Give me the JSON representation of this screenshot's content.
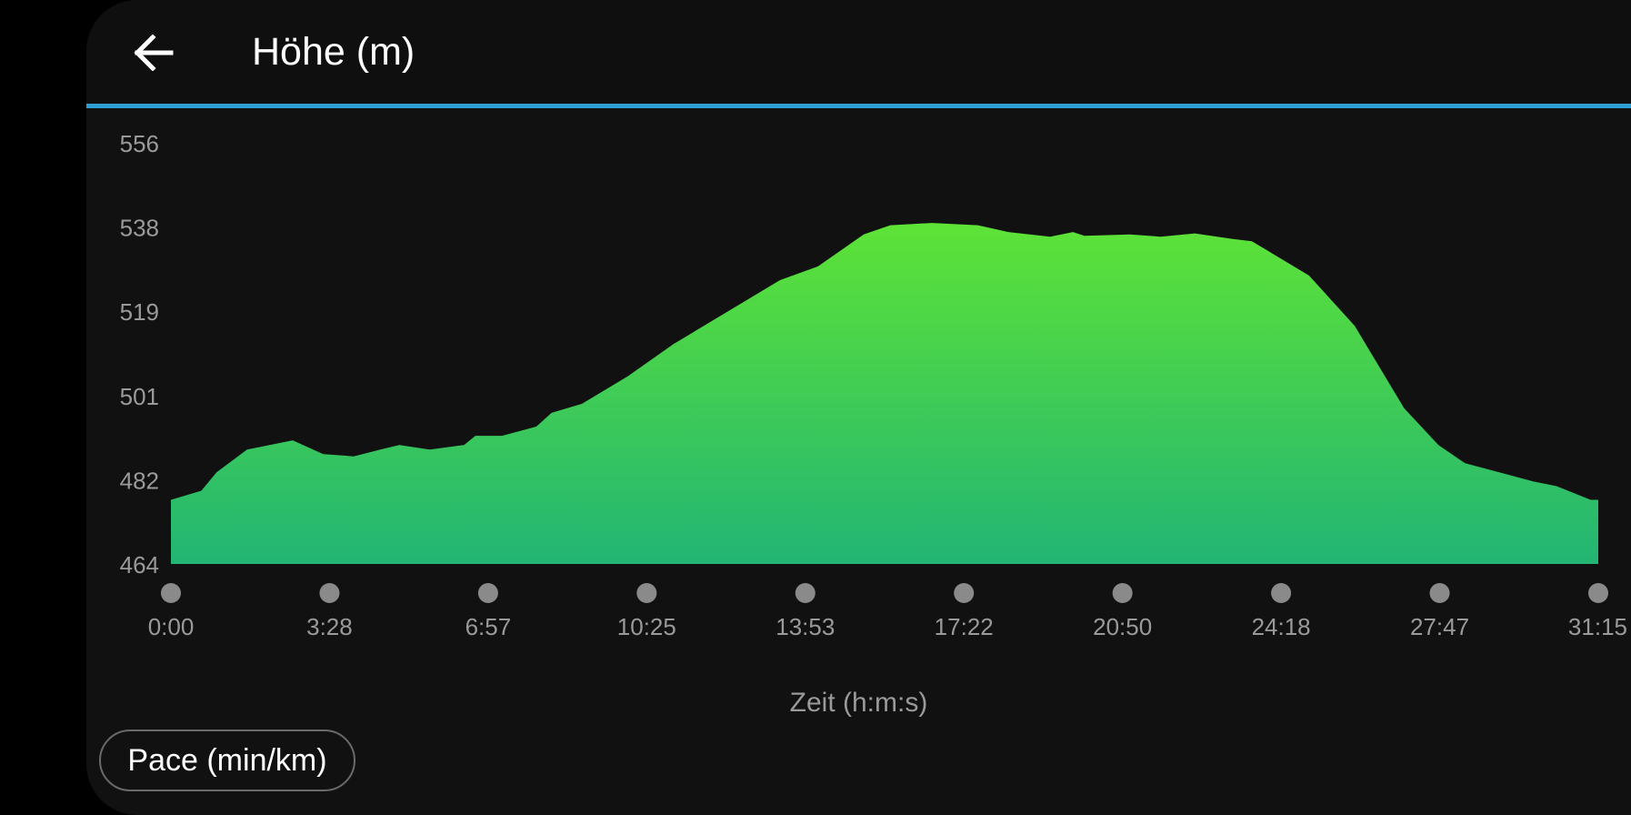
{
  "header": {
    "title": "Höhe (m)",
    "back_icon": "arrow-left-icon"
  },
  "colors": {
    "background": "#111111",
    "accent_line": "#2f9fd8",
    "fill_top": "#5ee336",
    "fill_bottom": "#22b574",
    "axis_text": "#9a9a9a",
    "marker": "#8a8a8a"
  },
  "footer": {
    "metric_button_label": "Pace (min/km)"
  },
  "chart_data": {
    "type": "area",
    "title": "Höhe (m)",
    "xlabel": "Zeit (h:m:s)",
    "ylabel": "",
    "ylim": [
      464,
      556
    ],
    "y_ticks": [
      "556",
      "538",
      "519",
      "501",
      "482",
      "464"
    ],
    "x_ticks": [
      "0:00",
      "3:28",
      "6:57",
      "10:25",
      "13:53",
      "17:22",
      "20:50",
      "24:18",
      "27:47",
      "31:15"
    ],
    "x_range_seconds": [
      0,
      1875
    ],
    "series": [
      {
        "x_seconds": [
          0,
          40,
          60,
          100,
          160,
          200,
          240,
          275,
          300,
          340,
          385,
          400,
          435,
          480,
          500,
          540,
          600,
          660,
          700,
          800,
          850,
          910,
          945,
          1000,
          1060,
          1100,
          1155,
          1185,
          1200,
          1260,
          1300,
          1345,
          1395,
          1420,
          1495,
          1555,
          1620,
          1665,
          1700,
          1745,
          1790,
          1820,
          1865,
          1875
        ],
        "values": [
          478,
          480,
          484,
          489,
          491,
          488,
          487.5,
          489,
          490,
          489,
          490,
          492,
          492,
          494,
          497,
          499,
          505,
          512,
          516,
          526,
          529,
          536,
          538,
          538.5,
          538,
          536.5,
          535.5,
          536.5,
          535.7,
          536,
          535.5,
          536.2,
          535,
          534.5,
          527,
          516,
          498,
          490,
          486,
          484,
          482,
          481,
          478,
          478
        ]
      }
    ]
  }
}
